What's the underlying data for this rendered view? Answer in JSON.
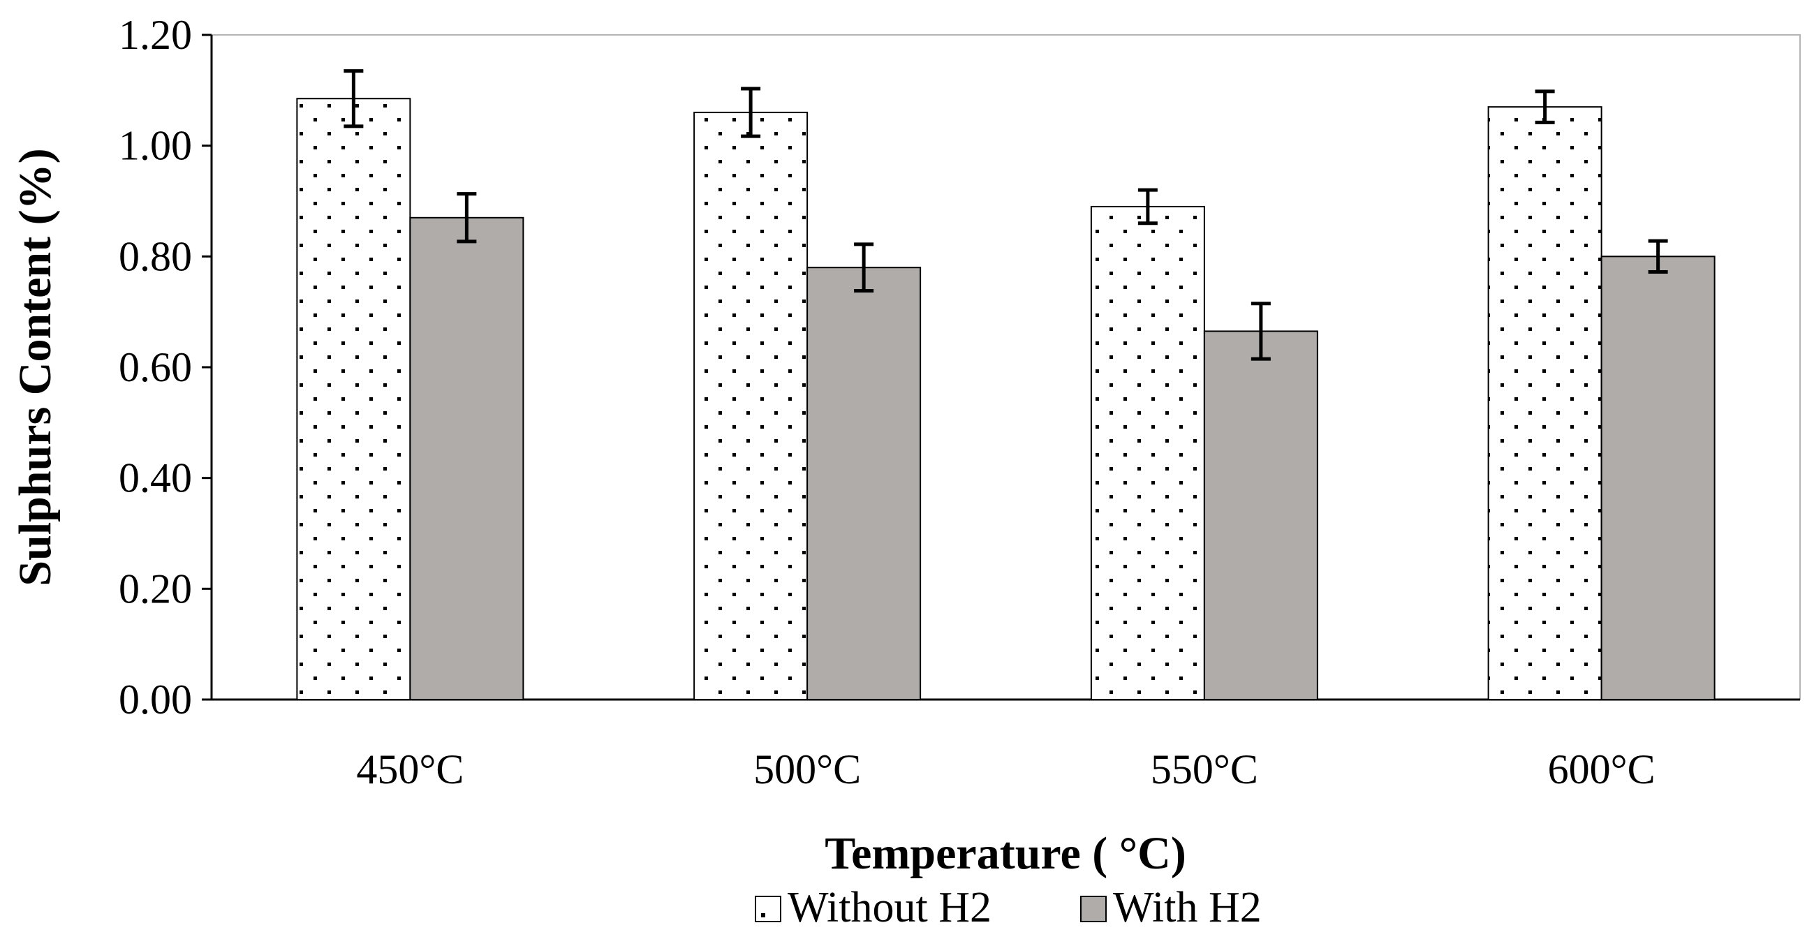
{
  "chart_data": {
    "type": "bar",
    "title": "",
    "xlabel": "Temperature ( °C)",
    "ylabel": "Sulphurs Content (%)",
    "categories": [
      "450°C",
      "500°C",
      "550°C",
      "600°C"
    ],
    "ylim": [
      0,
      1.2
    ],
    "yticks": [
      "0.00",
      "0.20",
      "0.40",
      "0.60",
      "0.80",
      "1.00",
      "1.20"
    ],
    "yticks_values": [
      0,
      0.2,
      0.4,
      0.6,
      0.8,
      1.0,
      1.2
    ],
    "grid": false,
    "legend_position": "bottom",
    "series": [
      {
        "name": "Without H2",
        "values": [
          1.085,
          1.06,
          0.89,
          1.07
        ],
        "errors": [
          0.05,
          0.043,
          0.03,
          0.028
        ],
        "fill": "dotted-white"
      },
      {
        "name": "With H2",
        "values": [
          0.87,
          0.78,
          0.665,
          0.8
        ],
        "errors": [
          0.043,
          0.042,
          0.05,
          0.028
        ],
        "fill": "gray"
      }
    ],
    "colors": {
      "without": "#ffffff",
      "with": "#b0acaa",
      "dots": "#000000",
      "axis": "#000000"
    }
  }
}
